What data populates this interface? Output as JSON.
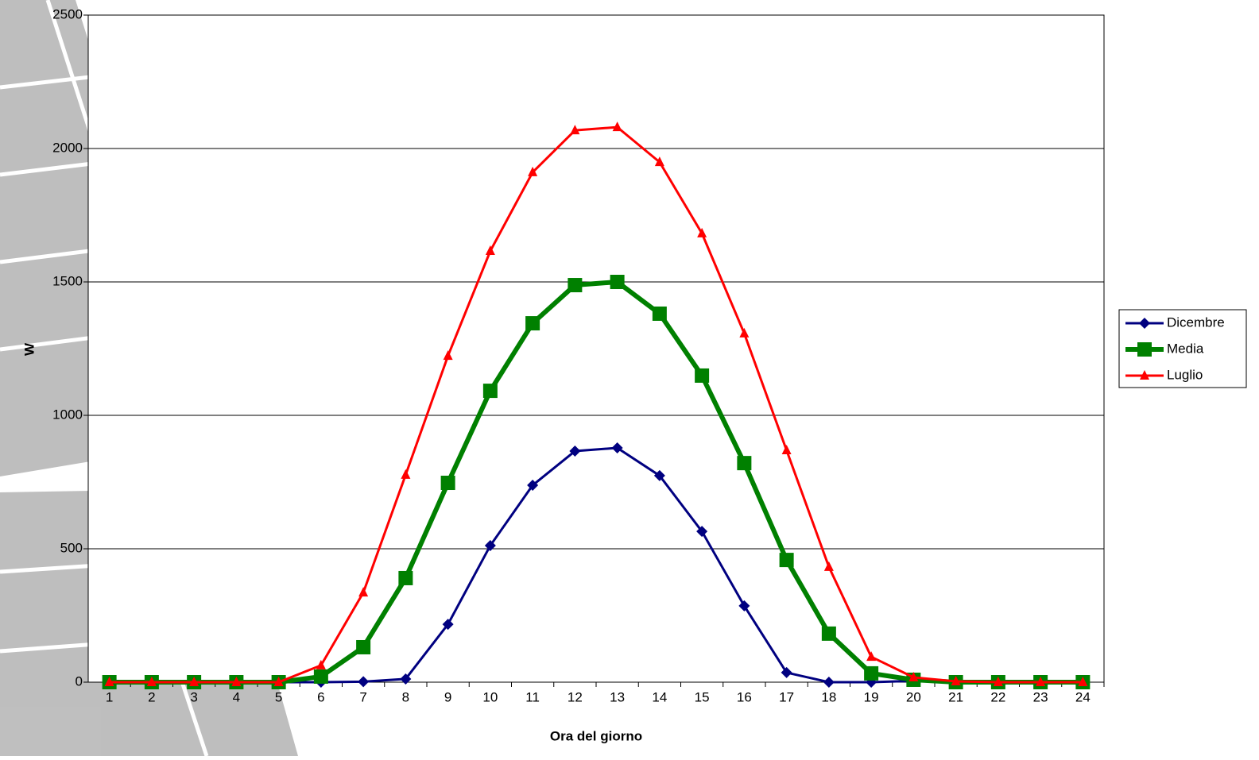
{
  "chart_data": {
    "type": "line",
    "x_label": "Ora del giorno",
    "y_label": "W",
    "categories": [
      "1",
      "2",
      "3",
      "4",
      "5",
      "6",
      "7",
      "8",
      "9",
      "10",
      "11",
      "12",
      "13",
      "14",
      "15",
      "16",
      "17",
      "18",
      "19",
      "20",
      "21",
      "22",
      "23",
      "24"
    ],
    "series": [
      {
        "name": "Dicembre",
        "color": "#000080",
        "marker": "diamond",
        "values": [
          0,
          0,
          0,
          0,
          0,
          0,
          2,
          12,
          217,
          512,
          738,
          866,
          878,
          774,
          565,
          286,
          36,
          0,
          0,
          5,
          0,
          0,
          0,
          0
        ]
      },
      {
        "name": "Media",
        "color": "#008000",
        "marker": "square",
        "values": [
          0,
          0,
          0,
          0,
          0,
          21,
          131,
          390,
          747,
          1092,
          1345,
          1488,
          1500,
          1381,
          1149,
          821,
          458,
          182,
          33,
          9,
          0,
          0,
          0,
          0
        ]
      },
      {
        "name": "Luglio",
        "color": "#ff0000",
        "marker": "triangle",
        "values": [
          0,
          0,
          0,
          0,
          0,
          63,
          336,
          777,
          1223,
          1616,
          1911,
          2068,
          2080,
          1949,
          1682,
          1307,
          869,
          432,
          95,
          18,
          3,
          0,
          0,
          0
        ]
      }
    ],
    "ylim": [
      0,
      2500
    ],
    "yticks": [
      0,
      500,
      1000,
      1500,
      2000,
      2500
    ],
    "grid": true,
    "legend": "right"
  }
}
